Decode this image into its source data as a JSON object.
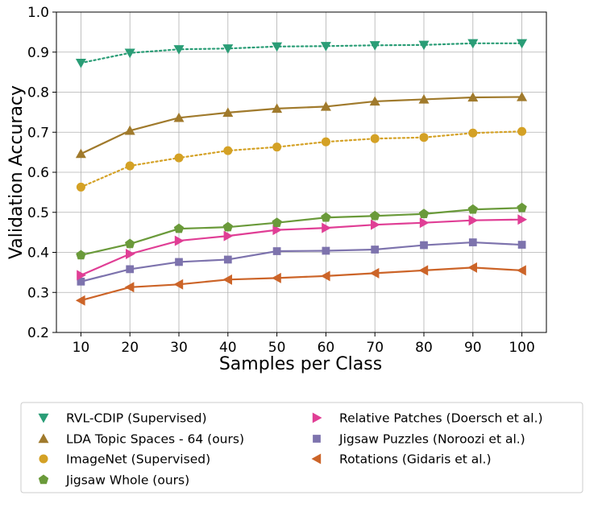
{
  "chart_data": {
    "type": "line",
    "title": "",
    "xlabel": "Samples per Class",
    "ylabel": "Validation Accuracy",
    "x": [
      10,
      20,
      30,
      40,
      50,
      60,
      70,
      80,
      90,
      100
    ],
    "xticks": [
      "10",
      "20",
      "30",
      "40",
      "50",
      "60",
      "70",
      "80",
      "90",
      "100"
    ],
    "yticks": [
      "0.2",
      "0.3",
      "0.4",
      "0.5",
      "0.6",
      "0.7",
      "0.8",
      "0.9",
      "1.0"
    ],
    "xlim": [
      5,
      105
    ],
    "ylim": [
      0.2,
      1.0
    ],
    "grid": true,
    "legend_position": "below",
    "series": [
      {
        "name": "RVL-CDIP (Supervised)",
        "color": "#2a9d76",
        "marker": "triangle-down",
        "line": "dotted",
        "values": [
          0.873,
          0.898,
          0.907,
          0.909,
          0.914,
          0.915,
          0.917,
          0.918,
          0.922,
          0.922
        ]
      },
      {
        "name": "LDA Topic Spaces - 64 (ours)",
        "color": "#a07a2c",
        "marker": "triangle-up",
        "line": "solid",
        "values": [
          0.646,
          0.704,
          0.736,
          0.749,
          0.759,
          0.764,
          0.777,
          0.782,
          0.787,
          0.788
        ]
      },
      {
        "name": "ImageNet (Supervised)",
        "color": "#d4a125",
        "marker": "circle",
        "line": "dotted",
        "values": [
          0.563,
          0.616,
          0.636,
          0.654,
          0.663,
          0.676,
          0.684,
          0.687,
          0.698,
          0.702
        ]
      },
      {
        "name": "Jigsaw Whole (ours)",
        "color": "#6a9a3a",
        "marker": "pentagon",
        "line": "solid",
        "values": [
          0.393,
          0.421,
          0.459,
          0.463,
          0.474,
          0.487,
          0.491,
          0.496,
          0.507,
          0.511
        ]
      },
      {
        "name": "Relative Patches (Doersch et al.)",
        "color": "#e03e95",
        "marker": "triangle-right",
        "line": "solid",
        "values": [
          0.343,
          0.396,
          0.429,
          0.441,
          0.456,
          0.461,
          0.469,
          0.474,
          0.48,
          0.482
        ]
      },
      {
        "name": "Jigsaw Puzzles (Noroozi et al.)",
        "color": "#7d73ad",
        "marker": "square",
        "line": "solid",
        "values": [
          0.327,
          0.358,
          0.376,
          0.382,
          0.403,
          0.404,
          0.407,
          0.418,
          0.425,
          0.419
        ]
      },
      {
        "name": "Rotations (Gidaris et al.)",
        "color": "#cc6428",
        "marker": "triangle-left",
        "line": "solid",
        "values": [
          0.28,
          0.313,
          0.32,
          0.332,
          0.336,
          0.341,
          0.348,
          0.355,
          0.362,
          0.355
        ]
      }
    ]
  }
}
